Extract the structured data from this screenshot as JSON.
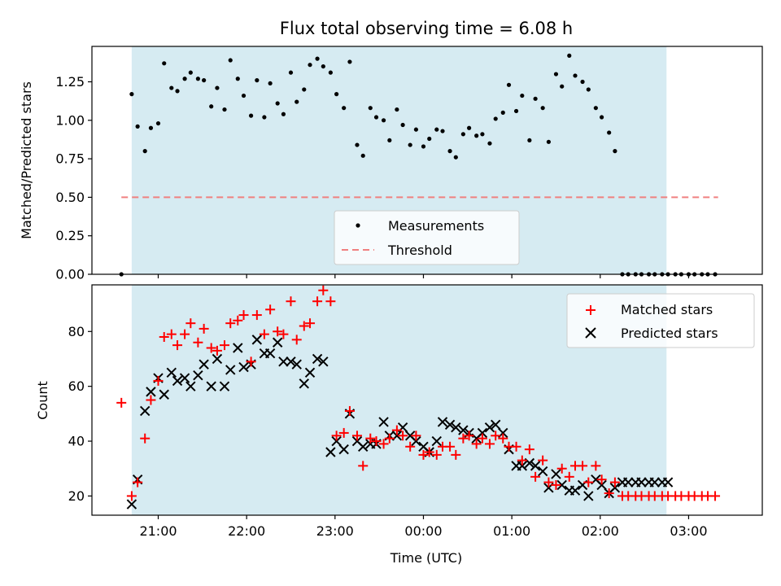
{
  "figure": {
    "title": "Flux total observing time = 6.08 h"
  },
  "time_axis": {
    "label": "Time (UTC)",
    "ticks": [
      {
        "label": "21:00",
        "h": 21
      },
      {
        "label": "22:00",
        "h": 22
      },
      {
        "label": "23:00",
        "h": 23
      },
      {
        "label": "00:00",
        "h": 24
      },
      {
        "label": "01:00",
        "h": 25
      },
      {
        "label": "02:00",
        "h": 26
      },
      {
        "label": "03:00",
        "h": 27
      }
    ]
  },
  "chart_data": [
    {
      "type": "scatter",
      "title": "Flux total observing time = 6.08 h",
      "xlabel": "Time (UTC)",
      "ylabel": "Matched/Predicted stars",
      "xlim": [
        "20:15",
        "03:50"
      ],
      "ylim": [
        0,
        1.48
      ],
      "yticks": [
        "0.00",
        "0.25",
        "0.50",
        "0.75",
        "1.00",
        "1.25"
      ],
      "ytick_values": [
        0,
        0.25,
        0.5,
        0.75,
        1.0,
        1.25
      ],
      "legend": {
        "placement": "lower-center",
        "entries": [
          "Measurements",
          "Threshold"
        ]
      },
      "shaded_span": {
        "from": "20:42",
        "to": "02:45",
        "color": "#add8e6"
      },
      "threshold": {
        "name": "Threshold",
        "value": 0.5,
        "from": "20:35",
        "to": "03:20",
        "color": "#f08080"
      },
      "series": [
        {
          "name": "Measurements",
          "marker": "dot",
          "color": "#000000",
          "x": [
            "20:35",
            "20:42",
            "20:46",
            "20:51",
            "20:55",
            "21:00",
            "21:04",
            "21:09",
            "21:13",
            "21:18",
            "21:22",
            "21:27",
            "21:31",
            "21:36",
            "21:40",
            "21:45",
            "21:49",
            "21:54",
            "21:58",
            "22:03",
            "22:07",
            "22:12",
            "22:16",
            "22:21",
            "22:25",
            "22:30",
            "22:34",
            "22:39",
            "22:43",
            "22:48",
            "22:52",
            "22:57",
            "23:01",
            "23:06",
            "23:10",
            "23:15",
            "23:19",
            "23:24",
            "23:28",
            "23:33",
            "23:37",
            "23:42",
            "23:46",
            "23:51",
            "23:55",
            "00:00",
            "00:04",
            "00:09",
            "00:13",
            "00:18",
            "00:22",
            "00:27",
            "00:31",
            "00:36",
            "00:40",
            "00:45",
            "00:49",
            "00:54",
            "00:58",
            "01:03",
            "01:07",
            "01:12",
            "01:16",
            "01:21",
            "01:25",
            "01:30",
            "01:34",
            "01:39",
            "01:43",
            "01:48",
            "01:52",
            "01:57",
            "02:01",
            "02:06",
            "02:10",
            "02:15",
            "02:19",
            "02:24",
            "02:28",
            "02:33",
            "02:37",
            "02:42",
            "02:46",
            "02:51",
            "02:55",
            "03:00",
            "03:04",
            "03:09",
            "03:13",
            "03:18"
          ],
          "y": [
            0.0,
            1.17,
            0.96,
            0.8,
            0.95,
            0.98,
            1.37,
            1.21,
            1.19,
            1.27,
            1.31,
            1.27,
            1.26,
            1.09,
            1.21,
            1.07,
            1.39,
            1.27,
            1.16,
            1.03,
            1.26,
            1.02,
            1.24,
            1.11,
            1.04,
            1.31,
            1.12,
            1.2,
            1.36,
            1.4,
            1.35,
            1.31,
            1.17,
            1.08,
            1.38,
            0.84,
            0.77,
            1.08,
            1.02,
            1.0,
            0.87,
            1.07,
            0.97,
            0.84,
            0.94,
            0.83,
            0.88,
            0.94,
            0.93,
            0.8,
            0.76,
            0.91,
            0.95,
            0.9,
            0.91,
            0.85,
            1.01,
            1.05,
            1.23,
            1.06,
            1.16,
            0.87,
            1.14,
            1.08,
            0.86,
            1.3,
            1.22,
            1.42,
            1.29,
            1.25,
            1.2,
            1.08,
            1.02,
            0.92,
            0.8,
            0.0,
            0.0,
            0.0,
            0.0,
            0.0,
            0.0,
            0.0,
            0.0,
            0.0,
            0.0,
            0.0,
            0.0,
            0.0,
            0.0,
            0.0
          ]
        }
      ]
    },
    {
      "type": "scatter",
      "xlabel": "Time (UTC)",
      "ylabel": "Count",
      "xlim": [
        "20:15",
        "03:50"
      ],
      "ylim": [
        13,
        97
      ],
      "yticks": [
        "20",
        "40",
        "60",
        "80"
      ],
      "ytick_values": [
        20,
        40,
        60,
        80
      ],
      "legend": {
        "placement": "top-right",
        "entries": [
          "Matched stars",
          "Predicted stars"
        ]
      },
      "shaded_span": {
        "from": "20:42",
        "to": "02:45",
        "color": "#add8e6"
      },
      "series": [
        {
          "name": "Matched stars",
          "marker": "plus",
          "color": "#ff0000",
          "x": [
            "20:35",
            "20:42",
            "20:46",
            "20:51",
            "20:55",
            "21:00",
            "21:04",
            "21:09",
            "21:13",
            "21:18",
            "21:22",
            "21:27",
            "21:31",
            "21:36",
            "21:40",
            "21:45",
            "21:49",
            "21:54",
            "21:58",
            "22:03",
            "22:07",
            "22:12",
            "22:16",
            "22:21",
            "22:25",
            "22:30",
            "22:34",
            "22:39",
            "22:43",
            "22:48",
            "22:52",
            "22:57",
            "23:01",
            "23:06",
            "23:10",
            "23:15",
            "23:19",
            "23:24",
            "23:28",
            "23:33",
            "23:37",
            "23:42",
            "23:46",
            "23:51",
            "23:55",
            "00:00",
            "00:04",
            "00:09",
            "00:13",
            "00:18",
            "00:22",
            "00:27",
            "00:31",
            "00:36",
            "00:40",
            "00:45",
            "00:49",
            "00:54",
            "00:58",
            "01:03",
            "01:07",
            "01:12",
            "01:16",
            "01:21",
            "01:25",
            "01:30",
            "01:34",
            "01:39",
            "01:43",
            "01:48",
            "01:52",
            "01:57",
            "02:01",
            "02:06",
            "02:10",
            "02:15",
            "02:19",
            "02:24",
            "02:28",
            "02:33",
            "02:37",
            "02:42",
            "02:46",
            "02:51",
            "02:55",
            "03:00",
            "03:04",
            "03:09",
            "03:13",
            "03:18"
          ],
          "y": [
            54,
            20,
            25,
            41,
            55,
            62,
            78,
            79,
            75,
            79,
            83,
            76,
            81,
            74,
            73,
            75,
            83,
            84,
            86,
            69,
            86,
            79,
            88,
            80,
            79,
            91,
            77,
            82,
            83,
            91,
            95,
            91,
            42,
            43,
            51,
            42,
            31,
            41,
            40,
            39,
            41,
            44,
            42,
            38,
            42,
            35,
            36,
            35,
            38,
            38,
            35,
            41,
            42,
            39,
            41,
            39,
            42,
            41,
            38,
            38,
            33,
            37,
            27,
            33,
            25,
            24,
            30,
            27,
            31,
            31,
            25,
            31,
            26,
            21,
            25,
            20,
            20,
            20,
            20,
            20,
            20,
            20,
            20,
            20,
            20,
            20,
            20,
            20,
            20,
            20
          ]
        },
        {
          "name": "Predicted stars",
          "marker": "x",
          "color": "#000000",
          "x": [
            "20:42",
            "20:46",
            "20:51",
            "20:55",
            "21:00",
            "21:04",
            "21:09",
            "21:13",
            "21:18",
            "21:22",
            "21:27",
            "21:31",
            "21:36",
            "21:40",
            "21:45",
            "21:49",
            "21:54",
            "21:58",
            "22:03",
            "22:07",
            "22:12",
            "22:16",
            "22:21",
            "22:25",
            "22:30",
            "22:34",
            "22:39",
            "22:43",
            "22:48",
            "22:52",
            "22:57",
            "23:01",
            "23:06",
            "23:10",
            "23:15",
            "23:19",
            "23:24",
            "23:28",
            "23:33",
            "23:37",
            "23:42",
            "23:46",
            "23:51",
            "23:55",
            "00:00",
            "00:04",
            "00:09",
            "00:13",
            "00:18",
            "00:22",
            "00:27",
            "00:31",
            "00:36",
            "00:40",
            "00:45",
            "00:49",
            "00:54",
            "00:58",
            "01:03",
            "01:07",
            "01:12",
            "01:16",
            "01:21",
            "01:25",
            "01:30",
            "01:34",
            "01:39",
            "01:43",
            "01:48",
            "01:52",
            "01:57",
            "02:01",
            "02:06",
            "02:10",
            "02:15",
            "02:19",
            "02:24",
            "02:28",
            "02:33",
            "02:37",
            "02:42",
            "02:46"
          ],
          "y": [
            17,
            26,
            51,
            58,
            63,
            57,
            65,
            62,
            63,
            60,
            64,
            68,
            60,
            70,
            60,
            66,
            74,
            67,
            68,
            77,
            72,
            72,
            76,
            69,
            69,
            68,
            61,
            65,
            70,
            69,
            36,
            40,
            37,
            50,
            40,
            38,
            39,
            39,
            47,
            42,
            42,
            45,
            42,
            40,
            38,
            36,
            40,
            47,
            46,
            45,
            44,
            43,
            41,
            43,
            45,
            46,
            43,
            37,
            31,
            31,
            32,
            31,
            29,
            23,
            28,
            24,
            22,
            22,
            24,
            20,
            26,
            24,
            21,
            23,
            25,
            25,
            25,
            25,
            25,
            25,
            25,
            25
          ]
        }
      ]
    }
  ]
}
